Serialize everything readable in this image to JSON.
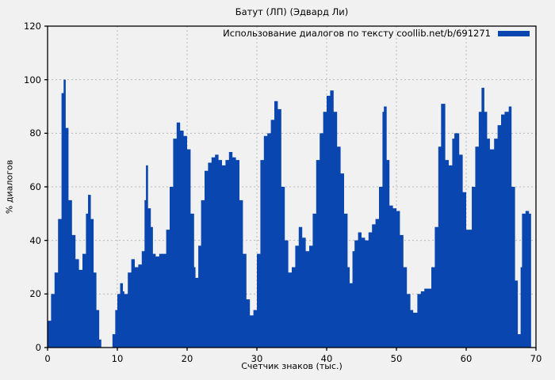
{
  "colors": {
    "background": "#f1f1f1",
    "fill": "#0a46b0",
    "grid": "#b8b8b8",
    "axis": "#000000",
    "text": "#000000"
  },
  "chart_data": {
    "type": "area",
    "title": "Батут (ЛП) (Эдвард Ли)",
    "xlabel": "Счетчик знаков (тыс.)",
    "ylabel": "% диалогов",
    "xlim": [
      0,
      70
    ],
    "ylim": [
      0,
      120
    ],
    "x_ticks": [
      0,
      10,
      20,
      30,
      40,
      50,
      60,
      70
    ],
    "y_ticks": [
      0,
      20,
      40,
      60,
      80,
      100,
      120
    ],
    "grid": true,
    "legend_position": "top-right",
    "series": [
      {
        "name": "Использование диалогов по тексту coollib.net/b/691271",
        "color": "#0a46b0",
        "style": "filled-steps",
        "points": [
          [
            0,
            10
          ],
          [
            0.5,
            20
          ],
          [
            1,
            28
          ],
          [
            1.5,
            48
          ],
          [
            2,
            95
          ],
          [
            2.3,
            100
          ],
          [
            2.6,
            82
          ],
          [
            3,
            55
          ],
          [
            3.5,
            42
          ],
          [
            4,
            33
          ],
          [
            4.5,
            29
          ],
          [
            5,
            35
          ],
          [
            5.5,
            50
          ],
          [
            5.8,
            57
          ],
          [
            6.2,
            48
          ],
          [
            6.6,
            28
          ],
          [
            7,
            14
          ],
          [
            7.4,
            3
          ],
          [
            7.7,
            0
          ],
          [
            8.9,
            0
          ],
          [
            9.3,
            5
          ],
          [
            9.7,
            14
          ],
          [
            10,
            20
          ],
          [
            10.4,
            24
          ],
          [
            10.8,
            21
          ],
          [
            11,
            20
          ],
          [
            11.5,
            28
          ],
          [
            12,
            33
          ],
          [
            12.5,
            30
          ],
          [
            13,
            31
          ],
          [
            13.5,
            36
          ],
          [
            13.9,
            55
          ],
          [
            14.1,
            68
          ],
          [
            14.4,
            52
          ],
          [
            14.8,
            45
          ],
          [
            15.1,
            35
          ],
          [
            15.5,
            34
          ],
          [
            16,
            35
          ],
          [
            16.5,
            35
          ],
          [
            17,
            44
          ],
          [
            17.5,
            60
          ],
          [
            18,
            78
          ],
          [
            18.5,
            84
          ],
          [
            19,
            81
          ],
          [
            19.5,
            79
          ],
          [
            20,
            74
          ],
          [
            20.5,
            50
          ],
          [
            21,
            30
          ],
          [
            21.2,
            26
          ],
          [
            21.6,
            38
          ],
          [
            22,
            55
          ],
          [
            22.5,
            66
          ],
          [
            23,
            69
          ],
          [
            23.5,
            71
          ],
          [
            24,
            72
          ],
          [
            24.5,
            70
          ],
          [
            25,
            68
          ],
          [
            25.5,
            70
          ],
          [
            26,
            73
          ],
          [
            26.5,
            71
          ],
          [
            27,
            70
          ],
          [
            27.5,
            55
          ],
          [
            28,
            35
          ],
          [
            28.5,
            18
          ],
          [
            29,
            12
          ],
          [
            29.5,
            14
          ],
          [
            30,
            35
          ],
          [
            30.5,
            70
          ],
          [
            31,
            79
          ],
          [
            31.5,
            80
          ],
          [
            32,
            85
          ],
          [
            32.5,
            92
          ],
          [
            33,
            89
          ],
          [
            33.5,
            60
          ],
          [
            34,
            40
          ],
          [
            34.5,
            28
          ],
          [
            35,
            30
          ],
          [
            35.5,
            38
          ],
          [
            36,
            45
          ],
          [
            36.5,
            41
          ],
          [
            37,
            36
          ],
          [
            37.5,
            38
          ],
          [
            38,
            50
          ],
          [
            38.5,
            70
          ],
          [
            39,
            80
          ],
          [
            39.5,
            88
          ],
          [
            40,
            94
          ],
          [
            40.5,
            96
          ],
          [
            41,
            88
          ],
          [
            41.5,
            75
          ],
          [
            42,
            65
          ],
          [
            42.5,
            50
          ],
          [
            43,
            30
          ],
          [
            43.3,
            24
          ],
          [
            43.7,
            36
          ],
          [
            44,
            40
          ],
          [
            44.5,
            43
          ],
          [
            45,
            41
          ],
          [
            45.5,
            40
          ],
          [
            46,
            43
          ],
          [
            46.5,
            46
          ],
          [
            47,
            48
          ],
          [
            47.5,
            60
          ],
          [
            48,
            88
          ],
          [
            48.2,
            90
          ],
          [
            48.6,
            70
          ],
          [
            49,
            53
          ],
          [
            49.5,
            52
          ],
          [
            50,
            51
          ],
          [
            50.5,
            42
          ],
          [
            51,
            30
          ],
          [
            51.5,
            20
          ],
          [
            52,
            14
          ],
          [
            52.4,
            13
          ],
          [
            53,
            20
          ],
          [
            53.5,
            21
          ],
          [
            54,
            22
          ],
          [
            54.5,
            22
          ],
          [
            55,
            30
          ],
          [
            55.5,
            45
          ],
          [
            56,
            75
          ],
          [
            56.4,
            91
          ],
          [
            57,
            70
          ],
          [
            57.5,
            68
          ],
          [
            58,
            78
          ],
          [
            58.3,
            80
          ],
          [
            59,
            72
          ],
          [
            59.5,
            58
          ],
          [
            60,
            44
          ],
          [
            60.8,
            60
          ],
          [
            61.3,
            75
          ],
          [
            61.8,
            88
          ],
          [
            62.2,
            97
          ],
          [
            62.6,
            88
          ],
          [
            63,
            78
          ],
          [
            63.4,
            74
          ],
          [
            64,
            78
          ],
          [
            64.5,
            83
          ],
          [
            65,
            87
          ],
          [
            65.5,
            88
          ],
          [
            66.1,
            90
          ],
          [
            66.5,
            60
          ],
          [
            67,
            25
          ],
          [
            67.4,
            5
          ],
          [
            67.8,
            30
          ],
          [
            68,
            50
          ],
          [
            68.5,
            51
          ],
          [
            69,
            50
          ],
          [
            69.3,
            50
          ],
          [
            69.3,
            0
          ]
        ]
      }
    ]
  }
}
